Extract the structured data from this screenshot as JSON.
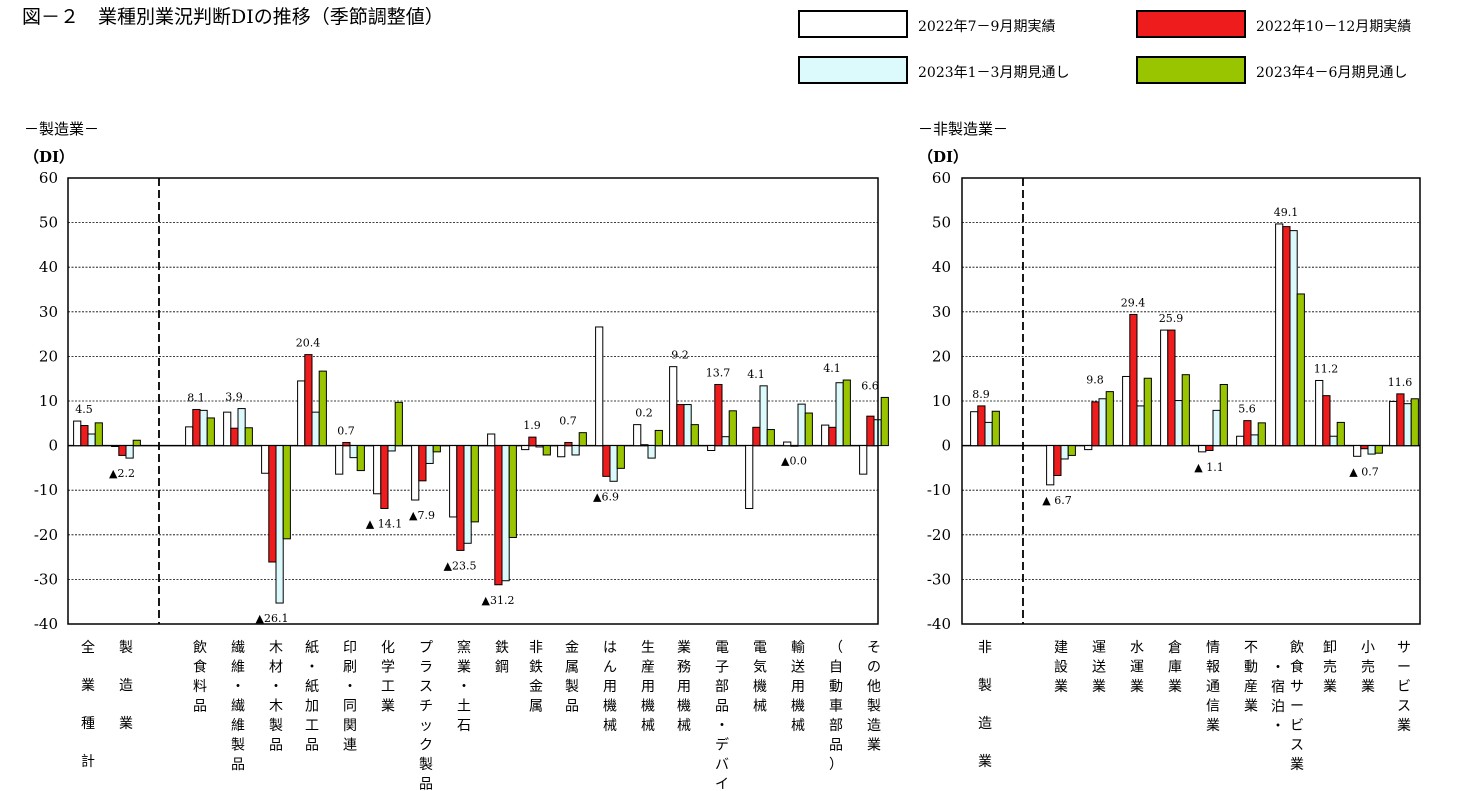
{
  "title": "図－２　業種別業況判断DIの推移（季節調整値）",
  "legend": [
    {
      "name": "2022年7－9月期実績",
      "color": "#ffffff"
    },
    {
      "name": "2022年10－12月期実績",
      "color": "#ee1c1c"
    },
    {
      "name": "2023年1－3月期見通し",
      "color": "#dcfafc"
    },
    {
      "name": "2023年4－6月期見通し",
      "color": "#99c400"
    }
  ],
  "chart_data": [
    {
      "type": "bar",
      "section_title": "－製造業－",
      "ylabel": "（DI）",
      "ylim": [
        -40,
        60
      ],
      "yticks": [
        60,
        50,
        40,
        30,
        20,
        10,
        0,
        -10,
        -20,
        -30,
        -40
      ],
      "grid": true,
      "categories": [
        "全業種計",
        "製造業",
        "飲食料品",
        "繊維・繊維製品",
        "木材・木製品",
        "紙・紙加工品",
        "印刷・同関連",
        "化学工業",
        "プラスチック製品",
        "窯業・土石",
        "鉄鋼",
        "非鉄金属",
        "金属製品",
        "はん用機械",
        "生産用機械",
        "業務用機械",
        "電子部品・デバイス",
        "電気機械",
        "輸送用機械",
        "（自動車部品）",
        "その他製造業"
      ],
      "series": [
        {
          "name": "2022年7－9月期実績",
          "values": [
            5.5,
            -0.2,
            4.2,
            7.5,
            -6.2,
            14.5,
            -6.4,
            -10.8,
            -12.2,
            -16.0,
            2.6,
            -0.9,
            -2.5,
            26.6,
            4.7,
            17.7,
            -1.1,
            -14.1,
            0.8,
            4.6,
            -6.4
          ]
        },
        {
          "name": "2022年10－12月期実績",
          "values": [
            4.5,
            -2.2,
            8.1,
            3.9,
            -26.1,
            20.4,
            0.7,
            -14.1,
            -7.9,
            -23.5,
            -31.2,
            1.9,
            0.7,
            -6.9,
            0.2,
            9.2,
            13.7,
            4.1,
            0.0,
            4.1,
            6.6
          ]
        },
        {
          "name": "2023年1－3月期見通し",
          "values": [
            2.6,
            -2.8,
            7.9,
            8.3,
            -35.3,
            7.5,
            -2.7,
            -1.2,
            -4.0,
            -21.9,
            -30.3,
            -0.3,
            -2.1,
            -8.0,
            -2.8,
            9.2,
            2.0,
            13.4,
            9.3,
            14.1,
            5.8
          ]
        },
        {
          "name": "2023年4－6月期見通し",
          "values": [
            5.1,
            1.2,
            6.2,
            4.0,
            -20.9,
            16.7,
            -5.6,
            9.7,
            -1.4,
            -17.1,
            -20.6,
            -2.1,
            2.9,
            -5.1,
            3.4,
            4.7,
            7.8,
            3.6,
            7.3,
            14.7,
            10.8
          ]
        }
      ],
      "data_labels": [
        "4.5",
        "▲2.2",
        "8.1",
        "3.9",
        "▲26.1",
        "20.4",
        "0.7",
        "▲ 14.1",
        "▲7.9",
        "▲23.5",
        "▲31.2",
        "1.9",
        "0.7",
        "▲6.9",
        "0.2",
        "9.2",
        "13.7",
        "4.1",
        "▲0.0",
        "4.1",
        "6.6"
      ]
    },
    {
      "type": "bar",
      "section_title": "－非製造業－",
      "ylabel": "（DI）",
      "ylim": [
        -40,
        60
      ],
      "yticks": [
        60,
        50,
        40,
        30,
        20,
        10,
        0,
        -10,
        -20,
        -30,
        -40
      ],
      "grid": true,
      "categories": [
        "非製造業",
        "建設業",
        "運送業",
        "水運業",
        "倉庫業",
        "情報通信業",
        "不動産業",
        "飲食サービス業・宿泊・",
        "卸売業",
        "小売業",
        "サービス業"
      ],
      "series": [
        {
          "name": "2022年7－9月期実績",
          "values": [
            7.6,
            -8.8,
            -0.9,
            15.5,
            25.9,
            -1.4,
            2.1,
            49.7,
            14.6,
            -2.4,
            9.9
          ]
        },
        {
          "name": "2022年10－12月期実績",
          "values": [
            8.9,
            -6.7,
            9.8,
            29.4,
            25.9,
            -1.1,
            5.6,
            49.1,
            11.2,
            -0.7,
            11.6
          ]
        },
        {
          "name": "2023年1－3月期見通し",
          "values": [
            5.2,
            -3.0,
            10.5,
            8.9,
            10.1,
            7.9,
            2.4,
            48.2,
            2.1,
            -1.9,
            9.4
          ]
        },
        {
          "name": "2023年4－6月期見通し",
          "values": [
            7.7,
            -2.2,
            12.1,
            15.1,
            15.9,
            13.7,
            5.1,
            34.0,
            5.2,
            -1.7,
            10.5
          ]
        }
      ],
      "data_labels": [
        "8.9",
        "▲ 6.7",
        "9.8",
        "29.4",
        "25.9",
        "▲ 1.1",
        "5.6",
        "49.1",
        "11.2",
        "▲ 0.7",
        "11.6"
      ]
    }
  ]
}
